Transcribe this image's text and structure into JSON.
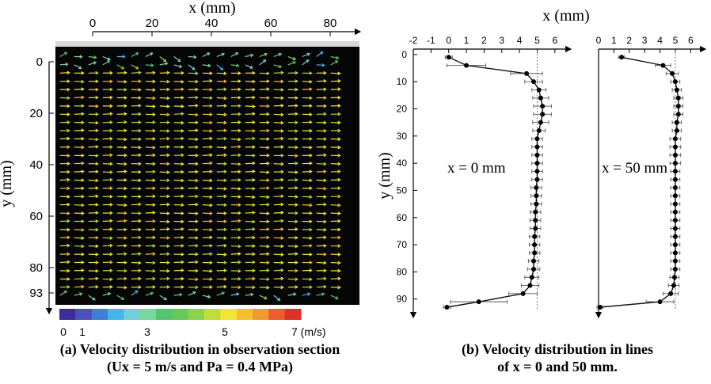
{
  "panel_a": {
    "xlabel": "x (mm)",
    "ylabel": "y (mm)",
    "x_ticks": [
      "0",
      "20",
      "40",
      "60",
      "80"
    ],
    "y_ticks": [
      "0",
      "20",
      "40",
      "60",
      "80",
      "93"
    ],
    "colorbar": {
      "tick_labels": [
        "0",
        "1",
        "3",
        "5",
        "7 (m/s)"
      ],
      "colors": [
        "#3b2e9a",
        "#4a52b8",
        "#3f7fd6",
        "#48b4e8",
        "#6fd0d8",
        "#78d6a0",
        "#56c46e",
        "#64c85a",
        "#8ed24c",
        "#c0dc3a",
        "#f0e634",
        "#f4c030",
        "#f09a2c",
        "#ec5c2c",
        "#e0302c"
      ]
    },
    "caption_line1": "(a) Velocity distribution in observation section",
    "caption_line2": "(Ux = 5 m/s and Pa = 0.4 MPa)"
  },
  "panel_b": {
    "xlabel": "x (mm)",
    "ylabel": "y (mm)",
    "caption_line1": "(b) Velocity distribution in lines",
    "caption_line2": "of x = 0 and 50 mm."
  },
  "chart_data": [
    {
      "type": "scatter",
      "name": "vector-field",
      "xlabel": "x (mm)",
      "ylabel": "y (mm)",
      "xlim": [
        -15,
        88
      ],
      "ylim": [
        93,
        -5
      ],
      "note_units": "m/s",
      "field_velocity_typical": 5,
      "colorbar_range": [
        0,
        7
      ]
    },
    {
      "type": "line",
      "name": "profile-x0",
      "label": "x = 0 mm",
      "xlabel": "x (mm)",
      "ylabel": "y (mm)",
      "xlim": [
        -2,
        6.5
      ],
      "ylim": [
        93,
        -2
      ],
      "x_ticks": [
        -2,
        -1,
        0,
        1,
        2,
        3,
        4,
        5,
        6
      ],
      "y_ticks": [
        0,
        10,
        20,
        30,
        40,
        50,
        60,
        70,
        80,
        90
      ],
      "reference_x": 5,
      "points": [
        {
          "x": 0.0,
          "y": 1,
          "err": 0.2
        },
        {
          "x": 1.0,
          "y": 4,
          "err": 1.1
        },
        {
          "x": 4.4,
          "y": 7,
          "err": 0.9
        },
        {
          "x": 4.8,
          "y": 10,
          "err": 0.5
        },
        {
          "x": 5.1,
          "y": 13,
          "err": 0.4
        },
        {
          "x": 5.2,
          "y": 16,
          "err": 0.45
        },
        {
          "x": 5.3,
          "y": 19,
          "err": 0.5
        },
        {
          "x": 5.3,
          "y": 22,
          "err": 0.5
        },
        {
          "x": 5.2,
          "y": 25,
          "err": 0.45
        },
        {
          "x": 5.1,
          "y": 28,
          "err": 0.35
        },
        {
          "x": 5.0,
          "y": 31,
          "err": 0.3
        },
        {
          "x": 5.0,
          "y": 34,
          "err": 0.3
        },
        {
          "x": 5.0,
          "y": 37,
          "err": 0.3
        },
        {
          "x": 5.0,
          "y": 40,
          "err": 0.3
        },
        {
          "x": 5.0,
          "y": 43,
          "err": 0.3
        },
        {
          "x": 5.0,
          "y": 46,
          "err": 0.3
        },
        {
          "x": 4.95,
          "y": 49,
          "err": 0.3
        },
        {
          "x": 4.95,
          "y": 52,
          "err": 0.3
        },
        {
          "x": 4.95,
          "y": 55,
          "err": 0.3
        },
        {
          "x": 4.9,
          "y": 58,
          "err": 0.3
        },
        {
          "x": 4.9,
          "y": 61,
          "err": 0.3
        },
        {
          "x": 4.9,
          "y": 64,
          "err": 0.3
        },
        {
          "x": 4.85,
          "y": 67,
          "err": 0.3
        },
        {
          "x": 4.85,
          "y": 70,
          "err": 0.3
        },
        {
          "x": 4.85,
          "y": 73,
          "err": 0.3
        },
        {
          "x": 4.8,
          "y": 76,
          "err": 0.3
        },
        {
          "x": 4.8,
          "y": 79,
          "err": 0.35
        },
        {
          "x": 4.7,
          "y": 82,
          "err": 0.4
        },
        {
          "x": 4.6,
          "y": 85,
          "err": 0.5
        },
        {
          "x": 4.2,
          "y": 88,
          "err": 0.8
        },
        {
          "x": 1.7,
          "y": 91,
          "err": 1.6
        },
        {
          "x": -0.1,
          "y": 93,
          "err": 0.2
        }
      ]
    },
    {
      "type": "line",
      "name": "profile-x50",
      "label": "x = 50 mm",
      "xlabel": "x (mm)",
      "ylabel": "y (mm)",
      "xlim": [
        0,
        6.5
      ],
      "ylim": [
        93,
        -2
      ],
      "x_ticks": [
        0,
        1,
        2,
        3,
        4,
        5,
        6
      ],
      "y_ticks": [],
      "reference_x": 5,
      "points": [
        {
          "x": 1.5,
          "y": 1,
          "err": 0.2
        },
        {
          "x": 4.2,
          "y": 4,
          "err": 0.5
        },
        {
          "x": 4.8,
          "y": 7,
          "err": 0.4
        },
        {
          "x": 5.0,
          "y": 10,
          "err": 0.3
        },
        {
          "x": 5.1,
          "y": 13,
          "err": 0.3
        },
        {
          "x": 5.2,
          "y": 16,
          "err": 0.3
        },
        {
          "x": 5.2,
          "y": 19,
          "err": 0.3
        },
        {
          "x": 5.2,
          "y": 22,
          "err": 0.3
        },
        {
          "x": 5.1,
          "y": 25,
          "err": 0.3
        },
        {
          "x": 5.1,
          "y": 28,
          "err": 0.3
        },
        {
          "x": 5.0,
          "y": 31,
          "err": 0.35
        },
        {
          "x": 5.0,
          "y": 34,
          "err": 0.35
        },
        {
          "x": 5.0,
          "y": 37,
          "err": 0.35
        },
        {
          "x": 5.0,
          "y": 40,
          "err": 0.35
        },
        {
          "x": 5.0,
          "y": 43,
          "err": 0.3
        },
        {
          "x": 5.0,
          "y": 46,
          "err": 0.3
        },
        {
          "x": 5.0,
          "y": 49,
          "err": 0.3
        },
        {
          "x": 5.0,
          "y": 52,
          "err": 0.3
        },
        {
          "x": 5.0,
          "y": 55,
          "err": 0.3
        },
        {
          "x": 5.0,
          "y": 58,
          "err": 0.3
        },
        {
          "x": 5.0,
          "y": 61,
          "err": 0.3
        },
        {
          "x": 5.0,
          "y": 64,
          "err": 0.3
        },
        {
          "x": 5.0,
          "y": 67,
          "err": 0.3
        },
        {
          "x": 5.0,
          "y": 70,
          "err": 0.3
        },
        {
          "x": 5.0,
          "y": 73,
          "err": 0.3
        },
        {
          "x": 5.0,
          "y": 76,
          "err": 0.3
        },
        {
          "x": 5.0,
          "y": 79,
          "err": 0.3
        },
        {
          "x": 4.95,
          "y": 82,
          "err": 0.3
        },
        {
          "x": 4.9,
          "y": 85,
          "err": 0.35
        },
        {
          "x": 4.7,
          "y": 88,
          "err": 0.5
        },
        {
          "x": 4.0,
          "y": 91,
          "err": 0.9
        },
        {
          "x": 0.1,
          "y": 93,
          "err": 0.2
        }
      ]
    }
  ]
}
